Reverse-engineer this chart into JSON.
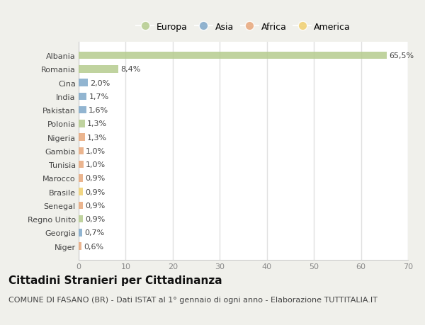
{
  "countries": [
    "Albania",
    "Romania",
    "Cina",
    "India",
    "Pakistan",
    "Polonia",
    "Nigeria",
    "Gambia",
    "Tunisia",
    "Marocco",
    "Brasile",
    "Senegal",
    "Regno Unito",
    "Georgia",
    "Niger"
  ],
  "values": [
    65.5,
    8.4,
    2.0,
    1.7,
    1.6,
    1.3,
    1.3,
    1.0,
    1.0,
    0.9,
    0.9,
    0.9,
    0.9,
    0.7,
    0.6
  ],
  "labels": [
    "65,5%",
    "8,4%",
    "2,0%",
    "1,7%",
    "1,6%",
    "1,3%",
    "1,3%",
    "1,0%",
    "1,0%",
    "0,9%",
    "0,9%",
    "0,9%",
    "0,9%",
    "0,7%",
    "0,6%"
  ],
  "colors": [
    "#b5cc8e",
    "#b5cc8e",
    "#7fa8c9",
    "#7fa8c9",
    "#7fa8c9",
    "#b5cc8e",
    "#e8a87c",
    "#e8a87c",
    "#e8a87c",
    "#e8a87c",
    "#f0d070",
    "#e8a87c",
    "#b5cc8e",
    "#7fa8c9",
    "#e8a87c"
  ],
  "legend_labels": [
    "Europa",
    "Asia",
    "Africa",
    "America"
  ],
  "legend_colors": [
    "#b5cc8e",
    "#7fa8c9",
    "#e8a87c",
    "#f0d070"
  ],
  "xlim": [
    0,
    70
  ],
  "xticks": [
    0,
    10,
    20,
    30,
    40,
    50,
    60,
    70
  ],
  "title": "Cittadini Stranieri per Cittadinanza",
  "subtitle": "COMUNE DI FASANO (BR) - Dati ISTAT al 1° gennaio di ogni anno - Elaborazione TUTTITALIA.IT",
  "figure_bg": "#f0f0eb",
  "plot_bg": "#ffffff",
  "grid_color": "#e0e0e0",
  "bar_height": 0.55,
  "title_fontsize": 11,
  "subtitle_fontsize": 8,
  "label_fontsize": 8,
  "tick_fontsize": 8,
  "legend_fontsize": 9
}
